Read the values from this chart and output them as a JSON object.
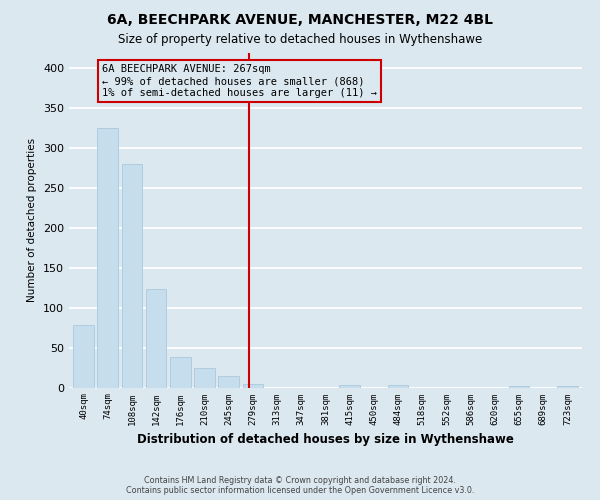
{
  "title": "6A, BEECHPARK AVENUE, MANCHESTER, M22 4BL",
  "subtitle": "Size of property relative to detached houses in Wythenshawe",
  "xlabel": "Distribution of detached houses by size in Wythenshawe",
  "ylabel": "Number of detached properties",
  "footnote1": "Contains HM Land Registry data © Crown copyright and database right 2024.",
  "footnote2": "Contains public sector information licensed under the Open Government Licence v3.0.",
  "annotation_title": "6A BEECHPARK AVENUE: 267sqm",
  "annotation_line1": "← 99% of detached houses are smaller (868)",
  "annotation_line2": "1% of semi-detached houses are larger (11) →",
  "bar_labels": [
    "40sqm",
    "74sqm",
    "108sqm",
    "142sqm",
    "176sqm",
    "210sqm",
    "245sqm",
    "279sqm",
    "313sqm",
    "347sqm",
    "381sqm",
    "415sqm",
    "450sqm",
    "484sqm",
    "518sqm",
    "552sqm",
    "586sqm",
    "620sqm",
    "655sqm",
    "689sqm",
    "723sqm"
  ],
  "bar_values": [
    78,
    325,
    280,
    123,
    38,
    25,
    15,
    5,
    0,
    0,
    0,
    3,
    0,
    3,
    0,
    0,
    0,
    0,
    2,
    0,
    2
  ],
  "bar_color": "#c6dded",
  "bar_edge_color": "#aac9de",
  "vline_x_idx": 6.83,
  "vline_color": "#cc0000",
  "annotation_box_color": "#cc0000",
  "ylim": [
    0,
    420
  ],
  "yticks": [
    0,
    50,
    100,
    150,
    200,
    250,
    300,
    350,
    400
  ],
  "background_color": "#dce8f0",
  "plot_bg_color": "#dce8f0",
  "grid_color": "#ffffff",
  "title_fontsize": 10,
  "subtitle_fontsize": 8.5
}
